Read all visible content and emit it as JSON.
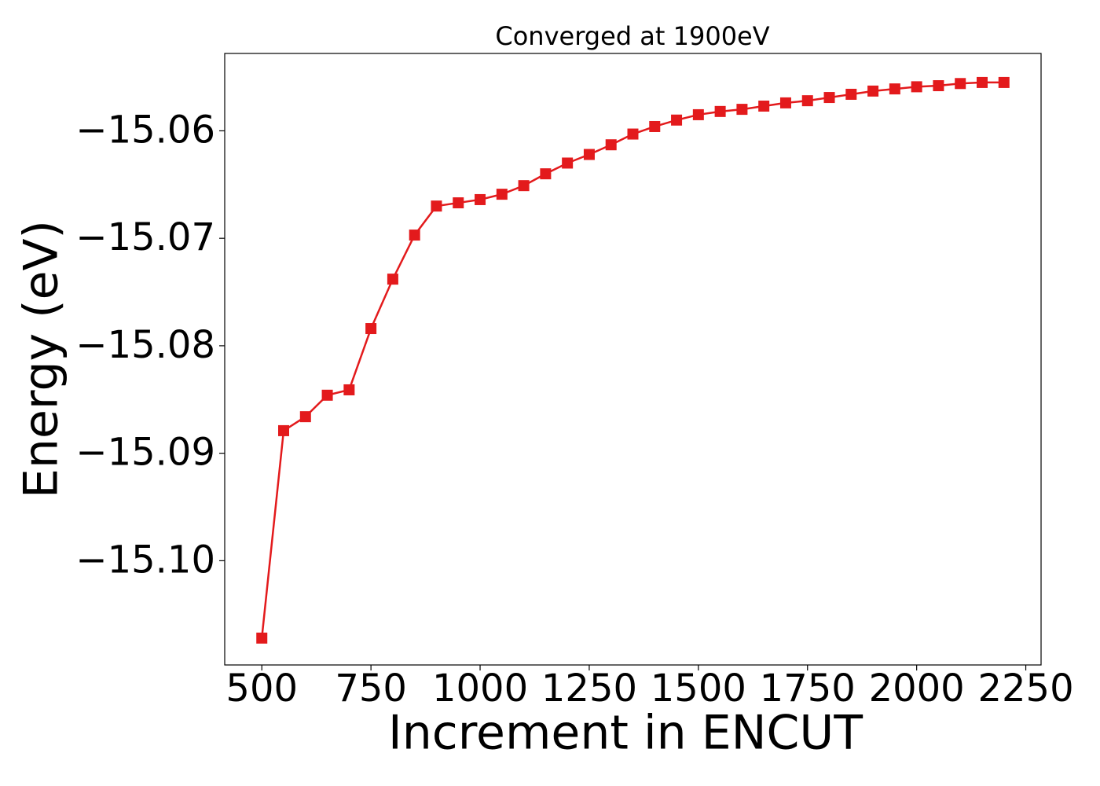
{
  "chart_data": {
    "type": "line",
    "title": "Converged at 1900eV",
    "xlabel": "Increment in ENCUT",
    "ylabel": "Energy (eV)",
    "x": [
      500,
      550,
      600,
      650,
      700,
      750,
      800,
      850,
      900,
      950,
      1000,
      1050,
      1100,
      1150,
      1200,
      1250,
      1300,
      1350,
      1400,
      1450,
      1500,
      1550,
      1600,
      1650,
      1700,
      1750,
      1800,
      1850,
      1900,
      1950,
      2000,
      2050,
      2100,
      2150,
      2200
    ],
    "series": [
      {
        "color": "#e31a1c",
        "marker": "square",
        "values": [
          -15.1072,
          -15.0879,
          -15.0866,
          -15.0846,
          -15.0841,
          -15.0784,
          -15.0738,
          -15.0697,
          -15.067,
          -15.0667,
          -15.0664,
          -15.0659,
          -15.0651,
          -15.064,
          -15.063,
          -15.0622,
          -15.0613,
          -15.0603,
          -15.0596,
          -15.059,
          -15.0585,
          -15.0582,
          -15.058,
          -15.0577,
          -15.0574,
          -15.0572,
          -15.0569,
          -15.0566,
          -15.0563,
          -15.0561,
          -15.0559,
          -15.0558,
          -15.0556,
          -15.0555,
          -15.0555
        ]
      }
    ],
    "xlim": [
      415,
      2285
    ],
    "ylim": [
      -15.1097,
      -15.0528
    ],
    "xticks": [
      500,
      750,
      1000,
      1250,
      1500,
      1750,
      2000,
      2250
    ],
    "yticks": [
      {
        "value": -15.1,
        "label": "−15.10"
      },
      {
        "value": -15.09,
        "label": "−15.09"
      },
      {
        "value": -15.08,
        "label": "−15.08"
      },
      {
        "value": -15.07,
        "label": "−15.07"
      },
      {
        "value": -15.06,
        "label": "−15.06"
      }
    ],
    "grid": false
  }
}
